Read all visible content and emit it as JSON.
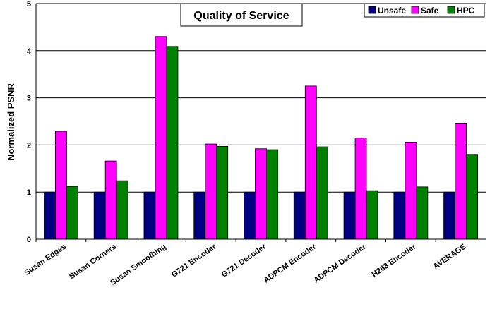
{
  "chart_data": {
    "type": "bar",
    "title": "Quality of Service",
    "xlabel": "",
    "ylabel": "Normalized PSNR",
    "ylim": [
      0,
      5
    ],
    "yticks": [
      0,
      1,
      2,
      3,
      4,
      5
    ],
    "grid": true,
    "legend_position": "top-right",
    "categories": [
      "Susan Edges",
      "Susan Corners",
      "Susan Smoothing",
      "G721 Encoder",
      "G721 Decoder",
      "ADPCM Encoder",
      "ADPCM Decoder",
      "H263 Encoder",
      "AVERAGE"
    ],
    "series": [
      {
        "name": "Unsafe",
        "color": "#000080",
        "values": [
          1.0,
          1.0,
          1.0,
          1.0,
          1.0,
          1.0,
          1.0,
          1.0,
          1.0
        ]
      },
      {
        "name": "Safe",
        "color": "#ff00ff",
        "values": [
          2.29,
          1.66,
          4.3,
          2.02,
          1.92,
          3.25,
          2.15,
          2.06,
          2.45
        ]
      },
      {
        "name": "HPC",
        "color": "#008000",
        "values": [
          1.12,
          1.24,
          4.09,
          1.97,
          1.9,
          1.96,
          1.03,
          1.11,
          1.8
        ]
      }
    ]
  }
}
